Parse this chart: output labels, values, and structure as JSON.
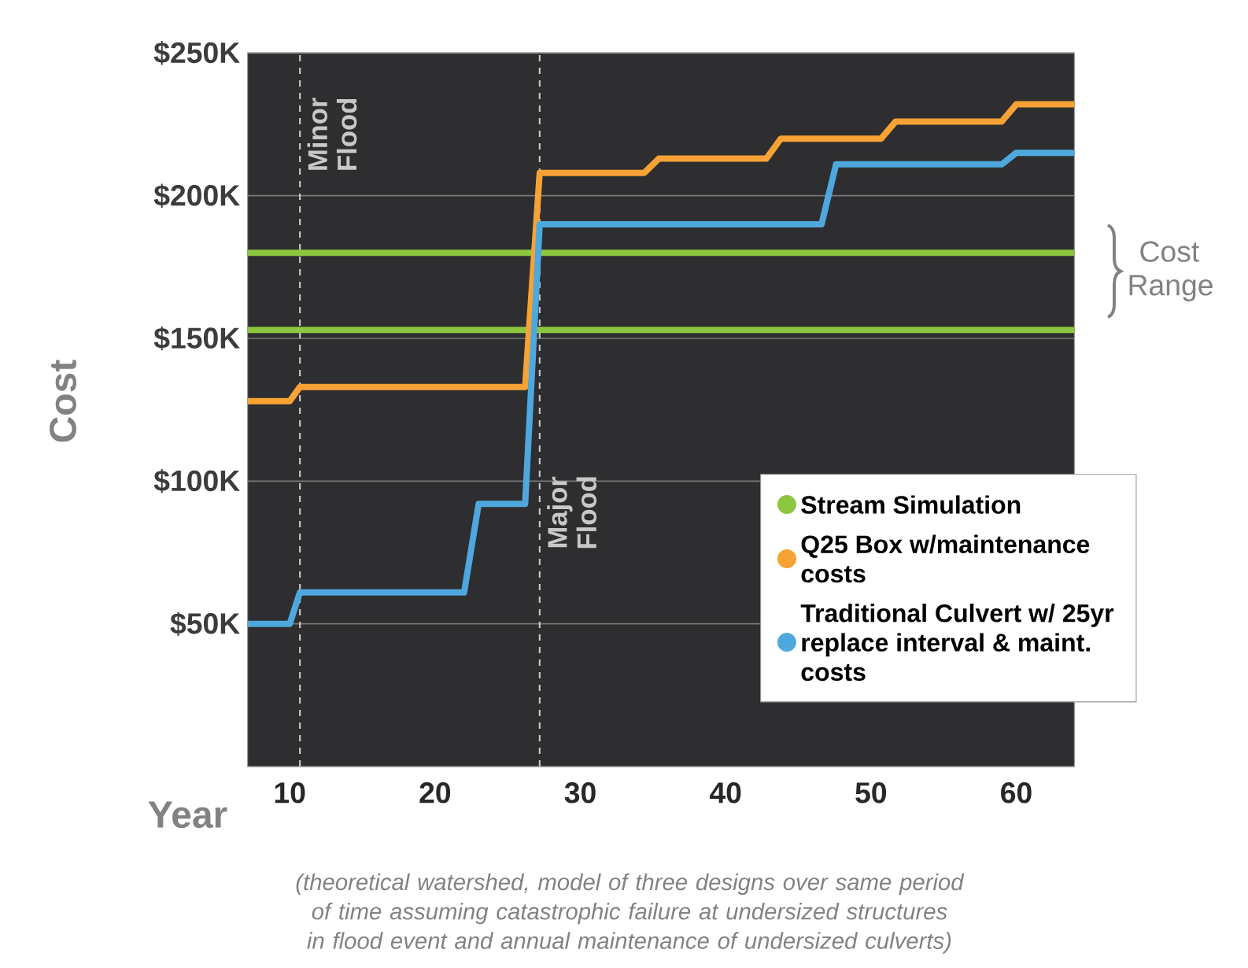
{
  "chart_data": {
    "type": "line",
    "xlabel": "Year",
    "ylabel": "Cost",
    "xlim": [
      7.1,
      64
    ],
    "xticks": [
      10,
      20,
      30,
      40,
      50,
      60
    ],
    "ylim": [
      0,
      250
    ],
    "yticks": [
      {
        "value": 0,
        "label": null
      },
      {
        "value": 50,
        "label": "$50K"
      },
      {
        "value": 100,
        "label": "$100K"
      },
      {
        "value": 150,
        "label": "$150K"
      },
      {
        "value": 200,
        "label": "$200K"
      },
      {
        "value": 250,
        "label": "$250K"
      }
    ],
    "grid": "y",
    "legend": "bottom right",
    "series": [
      {
        "name": "Stream Simulation",
        "color": "#8dc63f",
        "x": [
          7.1,
          64
        ],
        "values": [
          180,
          180
        ]
      },
      {
        "color": "#8dc63f",
        "x": [
          7.1,
          64
        ],
        "values": [
          153,
          153
        ]
      },
      {
        "name": "Q25 Box w/maintenance costs",
        "color": "#f7a234",
        "x": [
          7.1,
          10,
          10.7,
          26.2,
          27.2,
          34.4,
          35.4,
          42.8,
          43.8,
          50.7,
          51.7,
          59,
          60,
          64
        ],
        "values": [
          128,
          128,
          133,
          133,
          208,
          208,
          213,
          213,
          220,
          220,
          226,
          226,
          232,
          232
        ]
      },
      {
        "name": "Traditional Culvert w/ 25yr replace interval & maint. costs",
        "color": "#4ea8de",
        "x": [
          7.1,
          10,
          10.7,
          22,
          23,
          26.2,
          27.2,
          46.6,
          47.6,
          59,
          60,
          64
        ],
        "values": [
          50,
          50,
          61,
          61,
          92,
          92,
          190,
          190,
          211,
          211,
          215,
          215
        ]
      }
    ],
    "ref_lines": [
      {
        "axis": "x",
        "value": 10.7,
        "label": "Minor Flood",
        "color": "#c8c8c8",
        "line_style": "dashed"
      },
      {
        "axis": "x",
        "value": 27.2,
        "label": "Major Flood",
        "color": "#c8c8c8",
        "line_style": "dashed"
      }
    ],
    "annotations": [
      "Cost Range",
      "(theoretical watershed, model of three designs over same period of time assuming catastrophic failure at undersized structures in flood event and annual maintenance of undersized culverts)"
    ]
  }
}
